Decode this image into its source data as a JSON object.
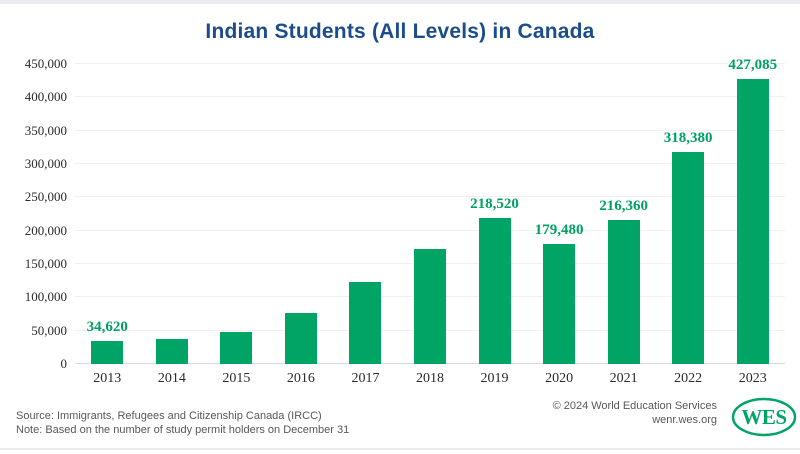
{
  "window": {
    "background": "#ffffff",
    "edge_border_color": "#ebebed"
  },
  "chart_data": {
    "type": "bar",
    "title": "Indian Students (All Levels) in Canada",
    "title_color": "#1b4d8c",
    "categories": [
      "2013",
      "2014",
      "2015",
      "2016",
      "2017",
      "2018",
      "2019",
      "2020",
      "2021",
      "2022",
      "2023"
    ],
    "values": [
      34620,
      38000,
      48500,
      76000,
      123000,
      172000,
      218520,
      179480,
      216360,
      318380,
      427085
    ],
    "bar_labels": [
      "34,620",
      "",
      "",
      "",
      "",
      "",
      "218,520",
      "179,480",
      "216,360",
      "318,380",
      "427,085"
    ],
    "xlabel": "",
    "ylabel": "",
    "ylim": [
      0,
      450000
    ],
    "ytick_step": 50000,
    "yticks": [
      "0",
      "50,000",
      "100,000",
      "150,000",
      "200,000",
      "250,000",
      "300,000",
      "350,000",
      "400,000",
      "450,000"
    ],
    "grid": true,
    "legend": "none",
    "bar_color": "#00a464",
    "bar_label_color": "#00a061",
    "tick_color": "#2b2b2b"
  },
  "footer": {
    "source_line": "Source: Immigrants, Refugees and Citizenship Canada (IRCC)",
    "note_line": "Note: Based on the number of study permit holders on December 31",
    "copyright_line": "© 2024 World Education Services",
    "website": "wenr.wes.org",
    "text_color": "#58585a",
    "logo": {
      "text": "WES",
      "color": "#00a464"
    }
  }
}
